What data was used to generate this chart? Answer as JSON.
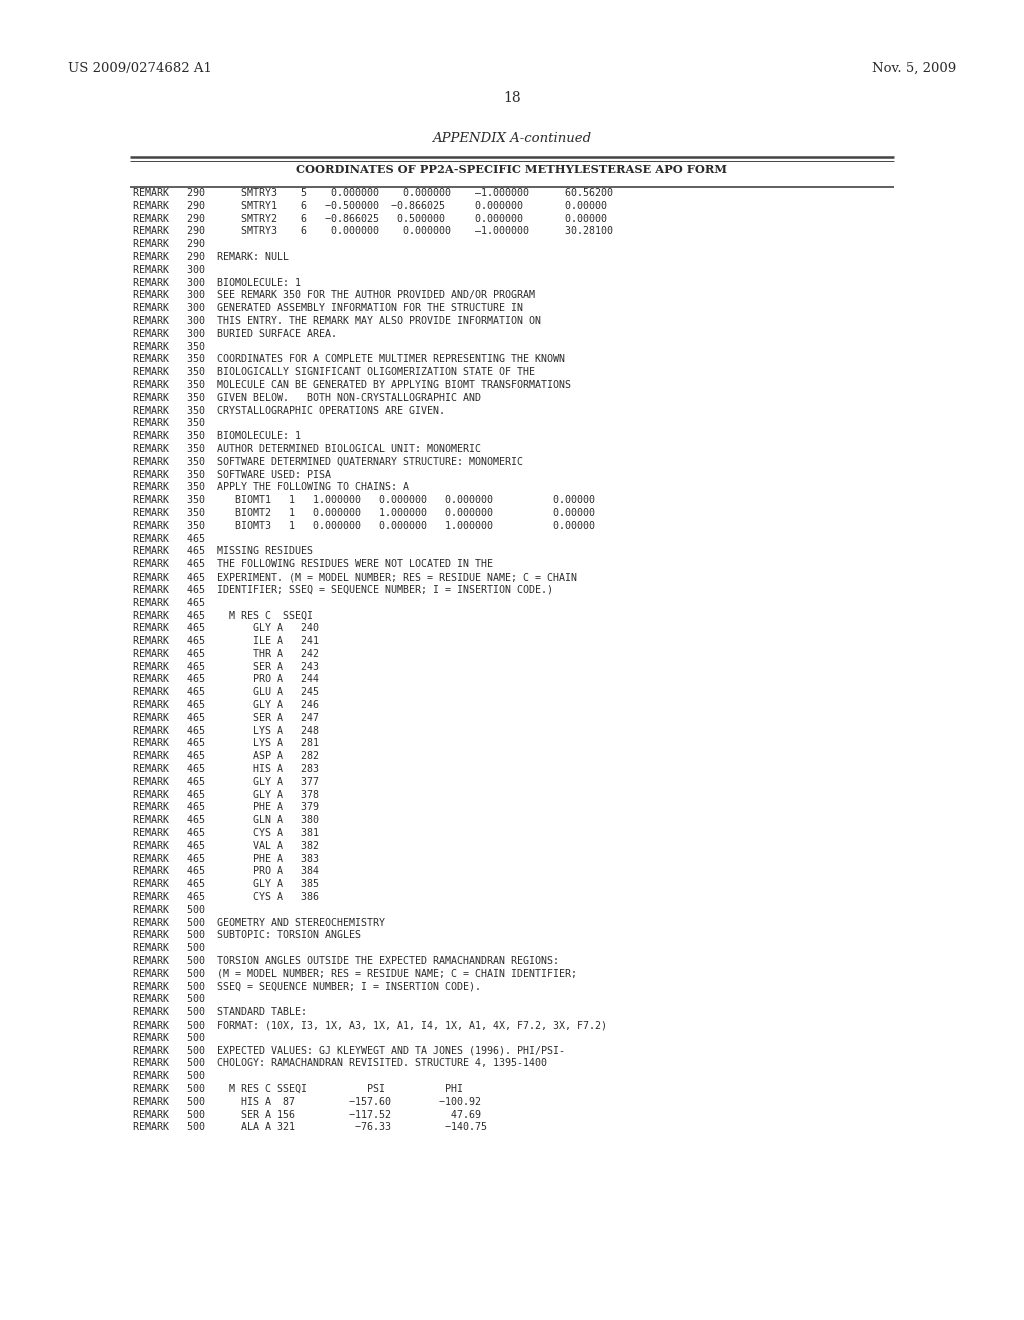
{
  "header_left": "US 2009/0274682 A1",
  "header_right": "Nov. 5, 2009",
  "page_number": "18",
  "appendix_title": "APPENDIX A-continued",
  "table_title": "COORDINATES OF PP2A-SPECIFIC METHYLESTERASE APO FORM",
  "background_color": "#ffffff",
  "text_color": "#2a2a2a",
  "lines": [
    "REMARK   290      SMTRY3    5    0.000000    0.000000    –1.000000      60.56200",
    "REMARK   290      SMTRY1    6   −0.500000  −0.866025     0.000000       0.00000",
    "REMARK   290      SMTRY2    6   −0.866025   0.500000     0.000000       0.00000",
    "REMARK   290      SMTRY3    6    0.000000    0.000000    –1.000000      30.28100",
    "REMARK   290",
    "REMARK   290  REMARK: NULL",
    "REMARK   300",
    "REMARK   300  BIOMOLECULE: 1",
    "REMARK   300  SEE REMARK 350 FOR THE AUTHOR PROVIDED AND/OR PROGRAM",
    "REMARK   300  GENERATED ASSEMBLY INFORMATION FOR THE STRUCTURE IN",
    "REMARK   300  THIS ENTRY. THE REMARK MAY ALSO PROVIDE INFORMATION ON",
    "REMARK   300  BURIED SURFACE AREA.",
    "REMARK   350",
    "REMARK   350  COORDINATES FOR A COMPLETE MULTIMER REPRESENTING THE KNOWN",
    "REMARK   350  BIOLOGICALLY SIGNIFICANT OLIGOMERIZATION STATE OF THE",
    "REMARK   350  MOLECULE CAN BE GENERATED BY APPLYING BIOMT TRANSFORMATIONS",
    "REMARK   350  GIVEN BELOW.   BOTH NON-CRYSTALLOGRAPHIC AND",
    "REMARK   350  CRYSTALLOGRAPHIC OPERATIONS ARE GIVEN.",
    "REMARK   350",
    "REMARK   350  BIOMOLECULE: 1",
    "REMARK   350  AUTHOR DETERMINED BIOLOGICAL UNIT: MONOMERIC",
    "REMARK   350  SOFTWARE DETERMINED QUATERNARY STRUCTURE: MONOMERIC",
    "REMARK   350  SOFTWARE USED: PISA",
    "REMARK   350  APPLY THE FOLLOWING TO CHAINS: A",
    "REMARK   350     BIOMT1   1   1.000000   0.000000   0.000000          0.00000",
    "REMARK   350     BIOMT2   1   0.000000   1.000000   0.000000          0.00000",
    "REMARK   350     BIOMT3   1   0.000000   0.000000   1.000000          0.00000",
    "REMARK   465",
    "REMARK   465  MISSING RESIDUES",
    "REMARK   465  THE FOLLOWING RESIDUES WERE NOT LOCATED IN THE",
    "REMARK   465  EXPERIMENT. (M = MODEL NUMBER; RES = RESIDUE NAME; C = CHAIN",
    "REMARK   465  IDENTIFIER; SSEQ = SEQUENCE NUMBER; I = INSERTION CODE.)",
    "REMARK   465",
    "REMARK   465    M RES C  SSEQI",
    "REMARK   465        GLY A   240",
    "REMARK   465        ILE A   241",
    "REMARK   465        THR A   242",
    "REMARK   465        SER A   243",
    "REMARK   465        PRO A   244",
    "REMARK   465        GLU A   245",
    "REMARK   465        GLY A   246",
    "REMARK   465        SER A   247",
    "REMARK   465        LYS A   248",
    "REMARK   465        LYS A   281",
    "REMARK   465        ASP A   282",
    "REMARK   465        HIS A   283",
    "REMARK   465        GLY A   377",
    "REMARK   465        GLY A   378",
    "REMARK   465        PHE A   379",
    "REMARK   465        GLN A   380",
    "REMARK   465        CYS A   381",
    "REMARK   465        VAL A   382",
    "REMARK   465        PHE A   383",
    "REMARK   465        PRO A   384",
    "REMARK   465        GLY A   385",
    "REMARK   465        CYS A   386",
    "REMARK   500",
    "REMARK   500  GEOMETRY AND STEREOCHEMISTRY",
    "REMARK   500  SUBTOPIC: TORSION ANGLES",
    "REMARK   500",
    "REMARK   500  TORSION ANGLES OUTSIDE THE EXPECTED RAMACHANDRAN REGIONS:",
    "REMARK   500  (M = MODEL NUMBER; RES = RESIDUE NAME; C = CHAIN IDENTIFIER;",
    "REMARK   500  SSEQ = SEQUENCE NUMBER; I = INSERTION CODE).",
    "REMARK   500",
    "REMARK   500  STANDARD TABLE:",
    "REMARK   500  FORMAT: (10X, I3, 1X, A3, 1X, A1, I4, 1X, A1, 4X, F7.2, 3X, F7.2)",
    "REMARK   500",
    "REMARK   500  EXPECTED VALUES: GJ KLEYWEGT AND TA JONES (1996). PHI/PSI-",
    "REMARK   500  CHOLOGY: RAMACHANDRAN REVISITED. STRUCTURE 4, 1395-1400",
    "REMARK   500",
    "REMARK   500    M RES C SSEQI          PSI          PHI",
    "REMARK   500      HIS A  87         −157.60        −100.92",
    "REMARK   500      SER A 156         −117.52          47.69",
    "REMARK   500      ALA A 321          −76.33         −140.75"
  ]
}
